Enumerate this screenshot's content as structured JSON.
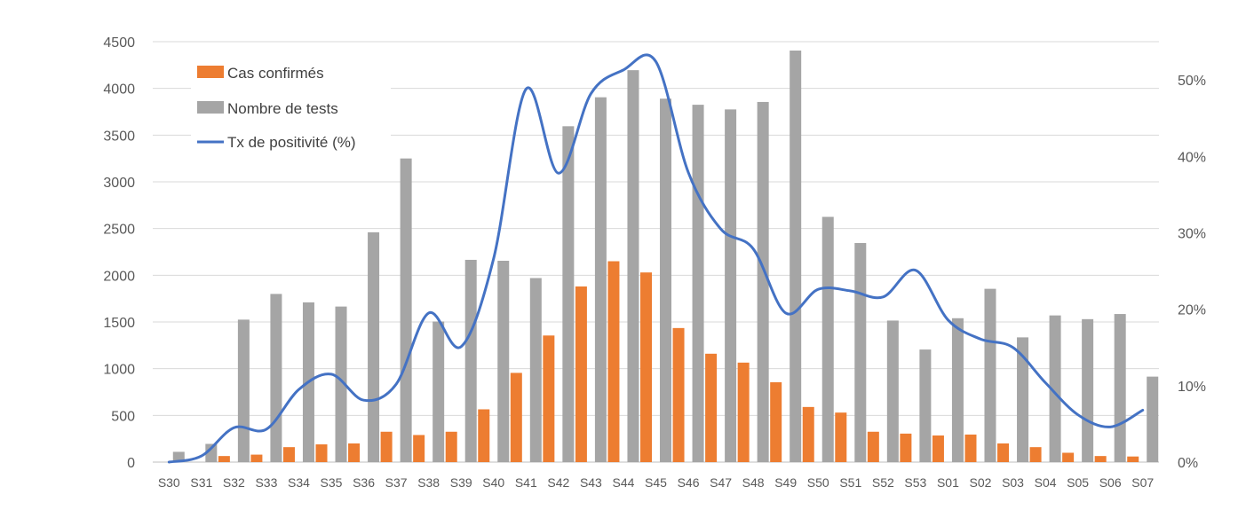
{
  "chart_data": {
    "type": "bar",
    "categories": [
      "S30",
      "S31",
      "S32",
      "S33",
      "S34",
      "S35",
      "S36",
      "S37",
      "S38",
      "S39",
      "S40",
      "S41",
      "S42",
      "S43",
      "S44",
      "S45",
      "S46",
      "S47",
      "S48",
      "S49",
      "S50",
      "S51",
      "S52",
      "S53",
      "S01",
      "S02",
      "S03",
      "S04",
      "S05",
      "S06",
      "S07"
    ],
    "series": [
      {
        "name": "Cas confirmés",
        "kind": "bar",
        "axis": "left",
        "color": "#ED7D31",
        "values": [
          0,
          0,
          65,
          80,
          160,
          190,
          200,
          325,
          290,
          325,
          565,
          955,
          1355,
          1880,
          2150,
          2030,
          1435,
          1160,
          1065,
          855,
          590,
          530,
          325,
          305,
          285,
          295,
          200,
          160,
          100,
          65,
          60
        ]
      },
      {
        "name": "Nombre de tests",
        "kind": "bar",
        "axis": "left",
        "color": "#A5A5A5",
        "values": [
          110,
          195,
          1525,
          1800,
          1710,
          1665,
          2460,
          3250,
          1505,
          2165,
          2155,
          1970,
          3595,
          3905,
          4195,
          3890,
          3825,
          3775,
          3855,
          4405,
          2625,
          2345,
          1515,
          1205,
          1540,
          1855,
          1335,
          1570,
          1530,
          1585,
          915
        ]
      },
      {
        "name": "Tx de positivité (%)",
        "kind": "line",
        "axis": "right",
        "color": "#4472C4",
        "values": [
          0,
          0.8,
          4.5,
          4.3,
          9.5,
          11.5,
          8.1,
          10.2,
          19.5,
          15.1,
          26.6,
          48.8,
          37.8,
          48.2,
          51.3,
          52.4,
          37.9,
          30.5,
          27.9,
          19.5,
          22.6,
          22.4,
          21.6,
          25.1,
          18.6,
          16.1,
          15.0,
          10.4,
          6.2,
          4.6,
          6.8
        ]
      }
    ],
    "y_left": {
      "min": 0,
      "max": 4500,
      "step": 500,
      "ticks": [
        "0",
        "500",
        "1000",
        "1500",
        "2000",
        "2500",
        "3000",
        "3500",
        "4000",
        "4500"
      ]
    },
    "y_right": {
      "min": 0,
      "max": 55,
      "ticks": [
        {
          "value": 0,
          "label": "0%"
        },
        {
          "value": 10,
          "label": "10%"
        },
        {
          "value": 20,
          "label": "20%"
        },
        {
          "value": 30,
          "label": "30%"
        },
        {
          "value": 40,
          "label": "40%"
        },
        {
          "value": 50,
          "label": "50%"
        }
      ]
    },
    "grid": true,
    "legend_position": "top-left",
    "legend": [
      "Cas confirmés",
      "Nombre de tests",
      "Tx de positivité (%)"
    ]
  }
}
